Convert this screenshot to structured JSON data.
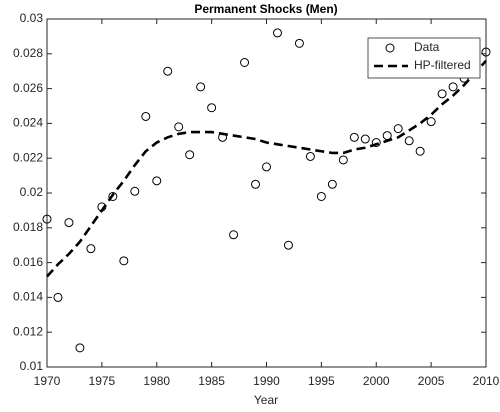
{
  "chart_data": {
    "type": "line",
    "title": "Permanent Shocks (Men)",
    "xlabel": "Year",
    "x": [
      1970,
      1971,
      1972,
      1973,
      1974,
      1975,
      1976,
      1977,
      1978,
      1979,
      1980,
      1981,
      1982,
      1983,
      1984,
      1985,
      1986,
      1987,
      1988,
      1989,
      1990,
      1991,
      1992,
      1993,
      1994,
      1995,
      1996,
      1997,
      1998,
      1999,
      2000,
      2001,
      2002,
      2003,
      2004,
      2005,
      2006,
      2007,
      2008,
      2009,
      2010
    ],
    "series": [
      {
        "name": "Data",
        "color": "#000000",
        "style": "markers",
        "values": [
          0.0185,
          0.014,
          0.0183,
          0.0111,
          0.0168,
          0.0192,
          0.0198,
          0.0161,
          0.0201,
          0.0244,
          0.0207,
          0.027,
          0.0238,
          0.0222,
          0.0261,
          0.0249,
          0.0232,
          0.0176,
          0.0275,
          0.0205,
          0.0215,
          0.0292,
          0.017,
          0.0286,
          0.0221,
          0.0198,
          0.0205,
          0.0219,
          0.0232,
          0.0231,
          0.0229,
          0.0233,
          0.0237,
          0.023,
          0.0224,
          0.0241,
          0.0257,
          0.0261,
          0.0266,
          0.0273,
          0.0281
        ]
      },
      {
        "name": "HP-filtered",
        "color": "#000000",
        "style": "dashed",
        "values": [
          0.0152,
          0.0159,
          0.0165,
          0.0172,
          0.0181,
          0.019,
          0.0199,
          0.0207,
          0.0216,
          0.0224,
          0.0229,
          0.0232,
          0.0234,
          0.0235,
          0.0235,
          0.0235,
          0.0234,
          0.0233,
          0.0232,
          0.0231,
          0.0229,
          0.0228,
          0.0227,
          0.0226,
          0.0225,
          0.0224,
          0.0223,
          0.0223,
          0.0225,
          0.0226,
          0.0228,
          0.023,
          0.0232,
          0.0236,
          0.024,
          0.0245,
          0.0251,
          0.0256,
          0.0262,
          0.0269,
          0.0276
        ]
      }
    ],
    "xlim": [
      1970,
      2010
    ],
    "xticks": [
      1970,
      1975,
      1980,
      1985,
      1990,
      1995,
      2000,
      2005,
      2010
    ],
    "ylim": [
      0.01,
      0.03
    ],
    "yticks": [
      0.01,
      0.012,
      0.014,
      0.016,
      0.018,
      0.02,
      0.022,
      0.024,
      0.026,
      0.028,
      0.03
    ],
    "grid": false,
    "legend": "northeast"
  }
}
